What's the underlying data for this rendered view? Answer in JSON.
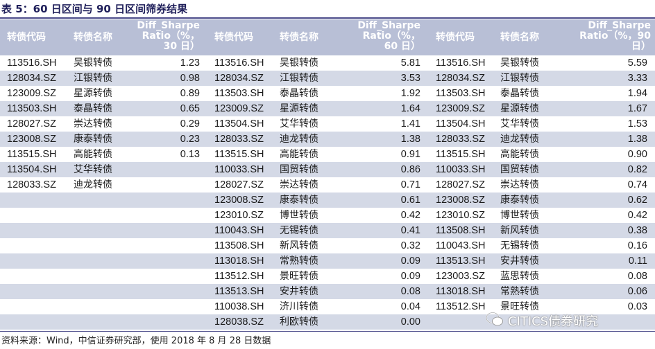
{
  "title": "表 5：60 日区间与 90 日区间筛券结果",
  "headers": {
    "code": "转债代码",
    "name": "转债名称",
    "col30": [
      "Diff_Sharpe",
      "Ratio（%，",
      "30 日）"
    ],
    "col60": [
      "Diff_Sharpe",
      "Ratio（%，",
      "60 日）"
    ],
    "col90": [
      "Diff_Sharpe",
      "Ratio（%，90",
      "日）"
    ]
  },
  "rows": [
    {
      "c30": "113516.SH",
      "n30": "吴银转债",
      "v30": "1.23",
      "c60": "113516.SH",
      "n60": "吴银转债",
      "v60": "5.81",
      "c90": "113516.SH",
      "n90": "吴银转债",
      "v90": "5.59"
    },
    {
      "c30": "128034.SZ",
      "n30": "江银转债",
      "v30": "0.98",
      "c60": "128034.SZ",
      "n60": "江银转债",
      "v60": "3.53",
      "c90": "128034.SZ",
      "n90": "江银转债",
      "v90": "3.33"
    },
    {
      "c30": "123009.SZ",
      "n30": "星源转债",
      "v30": "0.89",
      "c60": "113503.SH",
      "n60": "泰晶转债",
      "v60": "1.92",
      "c90": "113503.SH",
      "n90": "泰晶转债",
      "v90": "1.94"
    },
    {
      "c30": "113503.SH",
      "n30": "泰晶转债",
      "v30": "0.65",
      "c60": "123009.SZ",
      "n60": "星源转债",
      "v60": "1.64",
      "c90": "123009.SZ",
      "n90": "星源转债",
      "v90": "1.67"
    },
    {
      "c30": "128027.SZ",
      "n30": "崇达转债",
      "v30": "0.29",
      "c60": "113504.SH",
      "n60": "艾华转债",
      "v60": "1.41",
      "c90": "113504.SH",
      "n90": "艾华转债",
      "v90": "1.53"
    },
    {
      "c30": "123008.SZ",
      "n30": "康泰转债",
      "v30": "0.23",
      "c60": "128033.SZ",
      "n60": "迪龙转债",
      "v60": "1.38",
      "c90": "128033.SZ",
      "n90": "迪龙转债",
      "v90": "1.38"
    },
    {
      "c30": "113515.SH",
      "n30": "高能转债",
      "v30": "0.13",
      "c60": "113515.SH",
      "n60": "高能转债",
      "v60": "0.91",
      "c90": "113515.SH",
      "n90": "高能转债",
      "v90": "0.90"
    },
    {
      "c30": "113504.SH",
      "n30": "艾华转债",
      "v30": "",
      "c60": "110033.SH",
      "n60": "国贸转债",
      "v60": "0.86",
      "c90": "110033.SH",
      "n90": "国贸转债",
      "v90": "0.82"
    },
    {
      "c30": "128033.SZ",
      "n30": "迪龙转债",
      "v30": "",
      "c60": "128027.SZ",
      "n60": "崇达转债",
      "v60": "0.71",
      "c90": "128027.SZ",
      "n90": "崇达转债",
      "v90": "0.74"
    },
    {
      "c30": "",
      "n30": "",
      "v30": "",
      "c60": "123008.SZ",
      "n60": "康泰转债",
      "v60": "0.61",
      "c90": "123008.SZ",
      "n90": "康泰转债",
      "v90": "0.62"
    },
    {
      "c30": "",
      "n30": "",
      "v30": "",
      "c60": "123010.SZ",
      "n60": "博世转债",
      "v60": "0.42",
      "c90": "123010.SZ",
      "n90": "博世转债",
      "v90": "0.42"
    },
    {
      "c30": "",
      "n30": "",
      "v30": "",
      "c60": "110043.SH",
      "n60": "无锡转债",
      "v60": "0.41",
      "c90": "113508.SH",
      "n90": "新风转债",
      "v90": "0.38"
    },
    {
      "c30": "",
      "n30": "",
      "v30": "",
      "c60": "113508.SH",
      "n60": "新风转债",
      "v60": "0.32",
      "c90": "110043.SH",
      "n90": "无锡转债",
      "v90": "0.16"
    },
    {
      "c30": "",
      "n30": "",
      "v30": "",
      "c60": "113018.SH",
      "n60": "常熟转债",
      "v60": "0.09",
      "c90": "113513.SH",
      "n90": "安井转债",
      "v90": "0.11"
    },
    {
      "c30": "",
      "n30": "",
      "v30": "",
      "c60": "113512.SH",
      "n60": "景旺转债",
      "v60": "0.09",
      "c90": "123003.SZ",
      "n90": "蓝思转债",
      "v90": "0.08"
    },
    {
      "c30": "",
      "n30": "",
      "v30": "",
      "c60": "113513.SH",
      "n60": "安井转债",
      "v60": "0.08",
      "c90": "113018.SH",
      "n90": "常熟转债",
      "v90": "0.06"
    },
    {
      "c30": "",
      "n30": "",
      "v30": "",
      "c60": "110038.SH",
      "n60": "济川转债",
      "v60": "0.04",
      "c90": "113512.SH",
      "n90": "景旺转债",
      "v90": "0.03"
    },
    {
      "c30": "",
      "n30": "",
      "v30": "",
      "c60": "128038.SZ",
      "n60": "利欧转债",
      "v60": "0.00",
      "c90": "",
      "n90": "",
      "v90": ""
    }
  ],
  "source": "资料来源：Wind，中信证券研究部，使用 2018 年 8 月 28 日数据",
  "watermark": "CITICS债券研究"
}
